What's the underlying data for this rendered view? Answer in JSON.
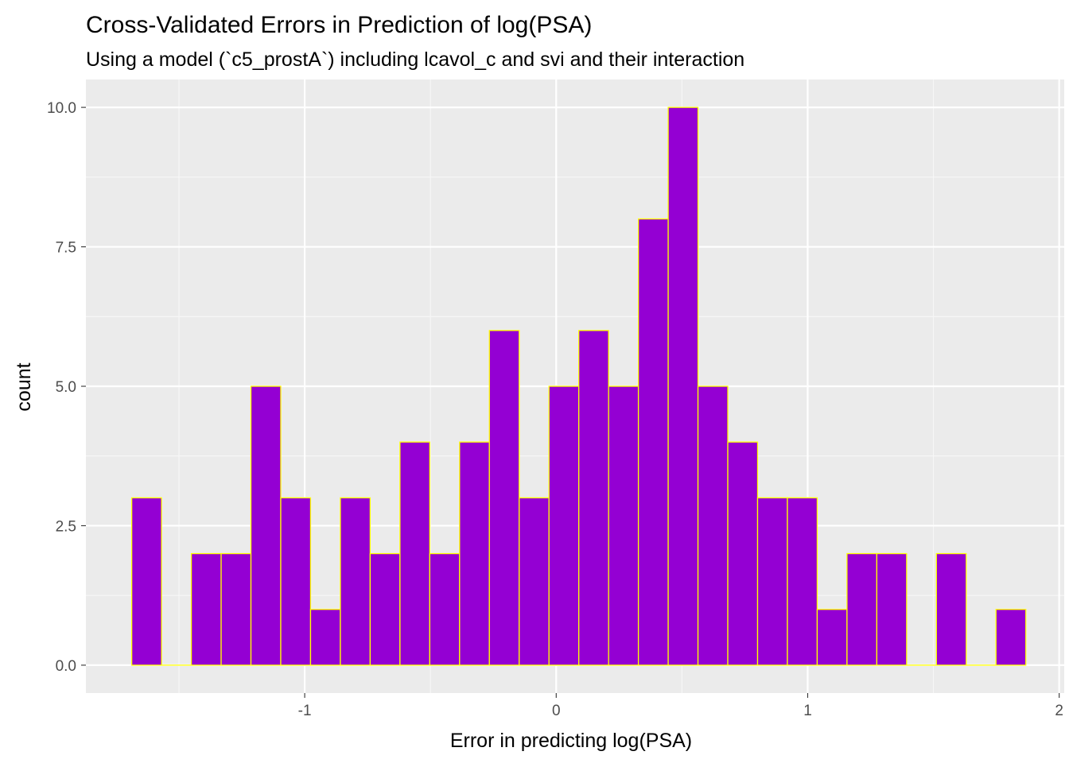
{
  "chart_data": {
    "type": "bar",
    "title": "Cross-Validated Errors in Prediction of log(PSA)",
    "subtitle": "Using a model (`c5_prostA`) including lcavol_c and svi and their interaction",
    "xlabel": "Error in predicting log(PSA)",
    "ylabel": "count",
    "xlim": [
      -1.87,
      2.02
    ],
    "ylim": [
      -0.5,
      10.5
    ],
    "x_ticks": [
      -1,
      0,
      1,
      2
    ],
    "x_tick_labels": [
      "-1",
      "0",
      "1",
      "2"
    ],
    "y_ticks": [
      0,
      2.5,
      5,
      7.5,
      10
    ],
    "y_tick_labels": [
      "0.0",
      "2.5",
      "5.0",
      "7.5",
      "10.0"
    ],
    "bin_width": 0.1185,
    "bin_start": -1.6877,
    "counts": [
      3,
      0,
      2,
      2,
      5,
      3,
      1,
      3,
      2,
      4,
      2,
      4,
      6,
      3,
      5,
      6,
      5,
      8,
      10,
      5,
      4,
      3,
      3,
      1,
      2,
      2,
      0,
      2,
      0,
      1
    ],
    "grid": true,
    "colors": {
      "panel_background": "#EBEBEB",
      "grid_major": "#FFFFFF",
      "grid_minor": "#F7F7F7",
      "bar_fill": "#9400D3",
      "bar_outline": "#FFFF00",
      "tick_text": "#4D4D4D",
      "tick_mark": "#333333"
    }
  }
}
